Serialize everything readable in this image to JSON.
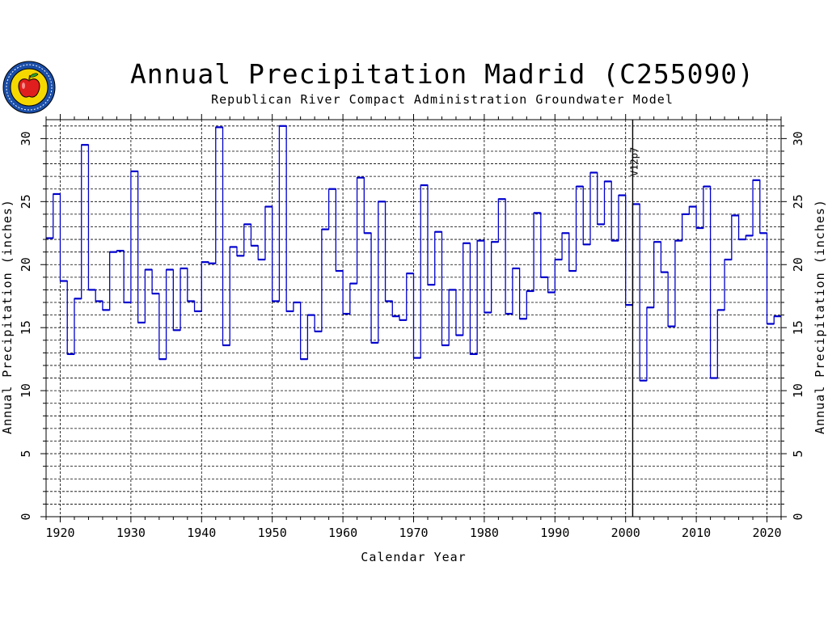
{
  "page": {
    "title": "Annual Precipitation Madrid (C255090)",
    "subtitle": "Republican River Compact Administration Groundwater Model",
    "logo": {
      "icon": "apple-seal-icon",
      "colors": {
        "ring": "#1a4ea8",
        "apple": "#e01e1e",
        "leaf": "#2aa02a",
        "field": "#f5d800"
      }
    }
  },
  "chart_data": {
    "type": "step",
    "title": "Annual Precipitation Madrid (C255090)",
    "subtitle": "Republican River Compact Administration Groundwater Model",
    "xlabel": "Calendar Year",
    "ylabel": "Annual Precipitation (inches)",
    "ylabel_right": "Annual Precipitation (inches)",
    "xlim": [
      1918,
      2022
    ],
    "ylim": [
      0,
      31.5
    ],
    "x_ticks": [
      1920,
      1930,
      1940,
      1950,
      1960,
      1970,
      1980,
      1990,
      2000,
      2010,
      2020
    ],
    "y_ticks": [
      0,
      5,
      10,
      15,
      20,
      25,
      30
    ],
    "grid": true,
    "series_color": "#0000cc",
    "annotation": {
      "text": "V12p7",
      "x": 2001
    },
    "series": [
      {
        "x": [
          1918,
          1919,
          1920,
          1921,
          1922,
          1923,
          1924,
          1925,
          1926,
          1927,
          1928,
          1929,
          1930,
          1931,
          1932,
          1933,
          1934,
          1935,
          1936,
          1937,
          1938,
          1939,
          1940,
          1941,
          1942,
          1943,
          1944,
          1945,
          1946,
          1947,
          1948,
          1949,
          1950,
          1951,
          1952,
          1953,
          1954,
          1955,
          1956,
          1957,
          1958,
          1959,
          1960,
          1961,
          1962,
          1963,
          1964,
          1965,
          1966,
          1967,
          1968,
          1969,
          1970,
          1971,
          1972,
          1973,
          1974,
          1975,
          1976,
          1977,
          1978,
          1979,
          1980,
          1981,
          1982,
          1983,
          1984,
          1985,
          1986,
          1987,
          1988,
          1989,
          1990,
          1991,
          1992,
          1993,
          1994,
          1995,
          1996,
          1997,
          1998,
          1999,
          2000,
          2001,
          2002,
          2003,
          2004,
          2005,
          2006,
          2007,
          2008,
          2009,
          2010,
          2011,
          2012,
          2013,
          2014,
          2015,
          2016,
          2017,
          2018,
          2019,
          2020,
          2021
        ],
        "values": [
          22.1,
          25.6,
          18.7,
          12.9,
          17.3,
          29.5,
          18.0,
          17.1,
          16.4,
          21.0,
          21.1,
          17.0,
          27.4,
          15.4,
          19.6,
          17.7,
          12.5,
          19.6,
          14.8,
          19.7,
          17.1,
          16.3,
          20.2,
          20.1,
          30.9,
          13.6,
          21.4,
          20.7,
          23.2,
          21.5,
          20.4,
          24.6,
          17.1,
          31.0,
          16.3,
          17.0,
          12.5,
          16.0,
          14.7,
          22.8,
          26.0,
          19.5,
          16.1,
          18.5,
          26.9,
          22.5,
          13.8,
          25.0,
          17.1,
          15.9,
          15.6,
          19.3,
          12.6,
          26.3,
          18.4,
          22.6,
          13.6,
          18.0,
          14.4,
          21.7,
          12.9,
          21.9,
          16.2,
          21.8,
          25.2,
          16.1,
          19.7,
          15.7,
          17.9,
          24.1,
          19.0,
          17.8,
          20.4,
          22.5,
          19.5,
          26.2,
          21.6,
          27.3,
          23.2,
          26.6,
          21.9,
          25.5,
          16.8,
          24.8,
          10.8,
          16.6,
          21.8,
          19.4,
          15.1,
          21.9,
          24.0,
          24.6,
          22.9,
          26.2,
          11.0,
          16.4,
          20.4,
          23.9,
          22.0,
          22.3,
          26.7,
          22.5,
          15.3,
          15.9
        ]
      }
    ]
  }
}
